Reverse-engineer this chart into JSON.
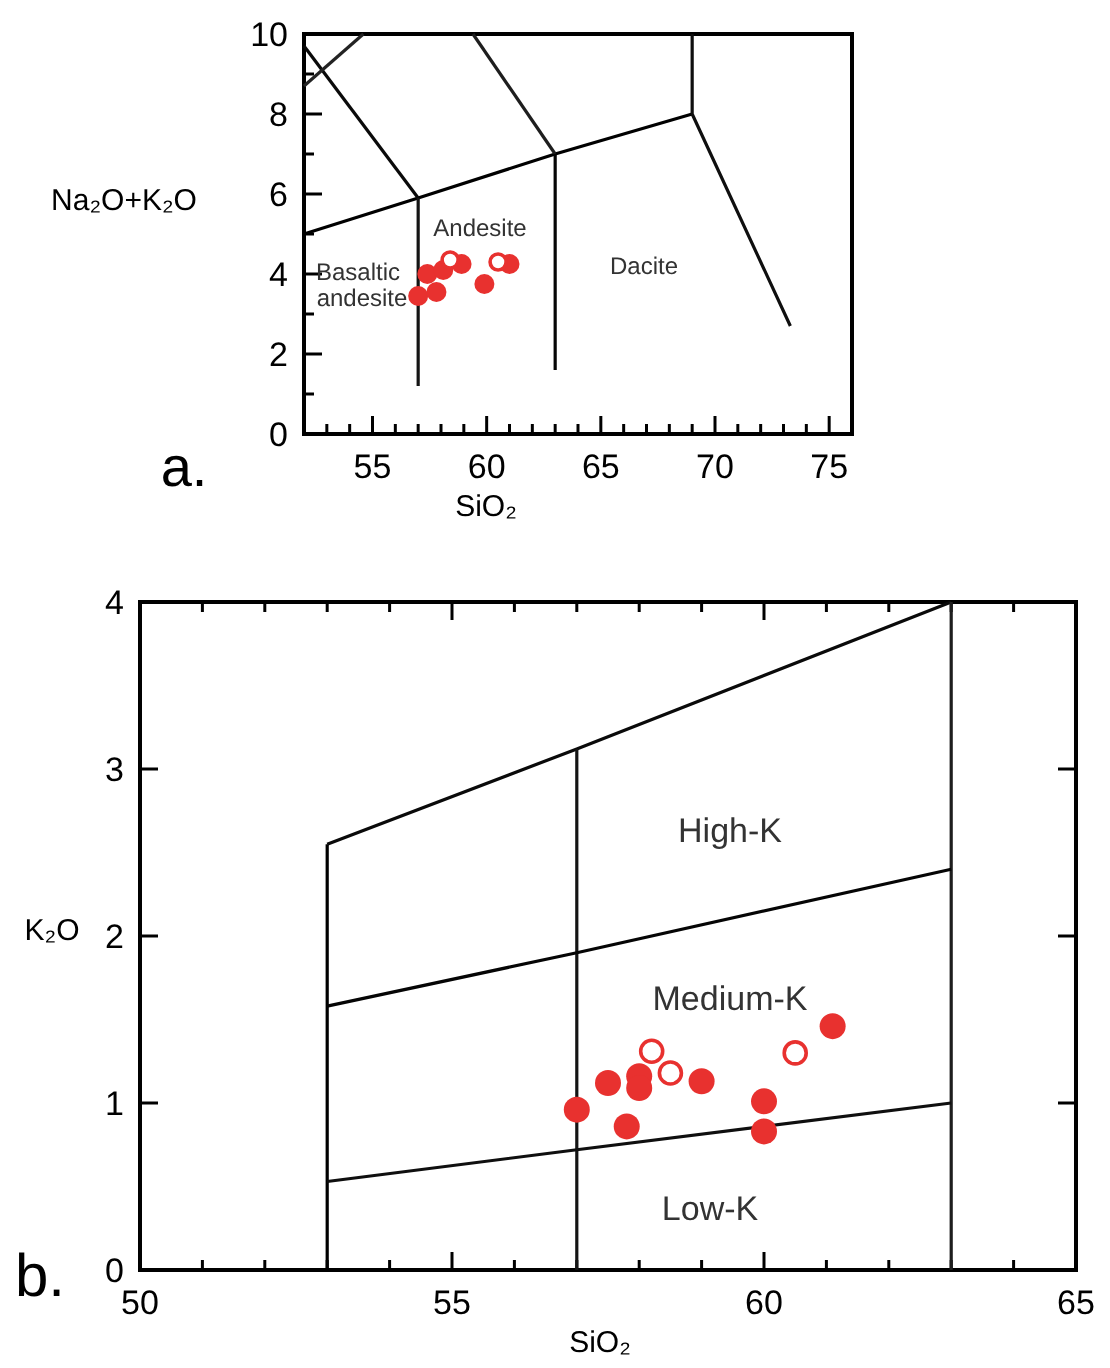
{
  "chart_data": [
    {
      "type": "scatter",
      "xlabel": "SiO₂",
      "ylabel": "Na₂O+K₂O",
      "xlim": [
        52,
        76
      ],
      "ylim": [
        0,
        10
      ],
      "xticks": [
        {
          "value": 53,
          "label": null
        },
        {
          "value": 54,
          "label": null
        },
        55,
        {
          "value": 56,
          "label": null
        },
        {
          "value": 57,
          "label": null
        },
        {
          "value": 58,
          "label": null
        },
        {
          "value": 59,
          "label": null
        },
        60,
        {
          "value": 61,
          "label": null
        },
        {
          "value": 62,
          "label": null
        },
        {
          "value": 63,
          "label": null
        },
        {
          "value": 64,
          "label": null
        },
        65,
        {
          "value": 66,
          "label": null
        },
        {
          "value": 67,
          "label": null
        },
        {
          "value": 68,
          "label": null
        },
        {
          "value": 69,
          "label": null
        },
        70,
        {
          "value": 71,
          "label": null
        },
        {
          "value": 72,
          "label": null
        },
        {
          "value": 73,
          "label": null
        },
        {
          "value": 74,
          "label": null
        },
        75
      ],
      "yticks": [
        0,
        {
          "value": 1,
          "label": null
        },
        2,
        {
          "value": 3,
          "label": null
        },
        4,
        {
          "value": 5,
          "label": null
        },
        6,
        {
          "value": 7,
          "label": null
        },
        8,
        {
          "value": 9,
          "label": null
        },
        10
      ],
      "series": [
        {
          "type": "line",
          "color": "#000000",
          "x": [
            52,
            57,
            63,
            69
          ],
          "values": [
            5,
            5.9,
            7,
            8
          ]
        },
        {
          "type": "line",
          "color": "#0a0a0a",
          "x": [
            52,
            57
          ],
          "values": [
            9.7,
            5.9
          ]
        },
        {
          "type": "line",
          "color": "#141414",
          "x": [
            57,
            57
          ],
          "values": [
            5.9,
            1.2
          ]
        },
        {
          "type": "line",
          "color": "#1e1e1e",
          "x": [
            59.4,
            63
          ],
          "values": [
            10,
            7
          ]
        },
        {
          "type": "line",
          "color": "#050505",
          "x": [
            63,
            63
          ],
          "values": [
            7,
            1.6
          ]
        },
        {
          "type": "line",
          "color": "#0f0f0f",
          "x": [
            69,
            69,
            73.3
          ],
          "values": [
            10,
            8,
            2.7
          ]
        },
        {
          "type": "line",
          "color": "#232323",
          "x": [
            52,
            54.6
          ],
          "values": [
            8.7,
            10
          ]
        },
        {
          "type": "scatter",
          "color": "#e8312f",
          "marker": "circle",
          "x": [
            57.0,
            57.4,
            57.8,
            58.1,
            58.9,
            59.9,
            61.0
          ],
          "values": [
            3.45,
            4.0,
            3.55,
            4.1,
            4.25,
            3.75,
            4.25
          ]
        },
        {
          "type": "scatter",
          "color": "#e8312f",
          "marker": "circle",
          "x": [
            58.4,
            60.5
          ],
          "values": [
            4.35,
            4.3
          ]
        }
      ],
      "annotations": [
        "Andesite",
        "Dacite",
        "Basaltic",
        "andesite",
        "a."
      ]
    },
    {
      "type": "scatter",
      "xlabel": "SiO₂",
      "ylabel": "K₂O",
      "xlim": [
        50,
        65
      ],
      "ylim": [
        0,
        4
      ],
      "xticks": [
        50,
        {
          "value": 51,
          "label": null
        },
        {
          "value": 52,
          "label": null
        },
        {
          "value": 53,
          "label": null
        },
        {
          "value": 54,
          "label": null
        },
        55,
        {
          "value": 56,
          "label": null
        },
        {
          "value": 57,
          "label": null
        },
        {
          "value": 58,
          "label": null
        },
        {
          "value": 59,
          "label": null
        },
        60,
        {
          "value": 61,
          "label": null
        },
        {
          "value": 62,
          "label": null
        },
        {
          "value": 63,
          "label": null
        },
        {
          "value": 64,
          "label": null
        },
        65
      ],
      "yticks": [
        0,
        1,
        2,
        3,
        4
      ],
      "series": [
        {
          "type": "line",
          "color": "#000000",
          "x": [
            53,
            53
          ],
          "values": [
            0,
            2.55
          ]
        },
        {
          "type": "line",
          "color": "#0a0a0a",
          "x": [
            53,
            57,
            63
          ],
          "values": [
            2.55,
            3.12,
            4
          ]
        },
        {
          "type": "line",
          "color": "#141414",
          "x": [
            57,
            57
          ],
          "values": [
            0,
            3.12
          ]
        },
        {
          "type": "line",
          "color": "#1e1e1e",
          "x": [
            63,
            63
          ],
          "values": [
            0,
            4
          ]
        },
        {
          "type": "line",
          "color": "#050505",
          "x": [
            53,
            57,
            63
          ],
          "values": [
            1.58,
            1.9,
            2.4
          ]
        },
        {
          "type": "line",
          "color": "#0f0f0f",
          "x": [
            53,
            57,
            63
          ],
          "values": [
            0.53,
            0.72,
            1.0
          ]
        },
        {
          "type": "scatter",
          "color": "#e8312f",
          "marker": "circle",
          "x": [
            57.0,
            57.5,
            57.8,
            58.0,
            58.0,
            59.0,
            60.0,
            60.0,
            61.1
          ],
          "values": [
            0.96,
            1.12,
            0.86,
            1.16,
            1.09,
            1.13,
            1.01,
            0.83,
            1.46
          ]
        },
        {
          "type": "scatter",
          "color": "#e8312f",
          "marker": "circle",
          "x": [
            58.2,
            58.5,
            60.5
          ],
          "values": [
            1.31,
            1.18,
            1.3
          ]
        }
      ],
      "annotations": [
        "High-K",
        "Medium-K",
        "Low-K",
        "b."
      ]
    }
  ]
}
